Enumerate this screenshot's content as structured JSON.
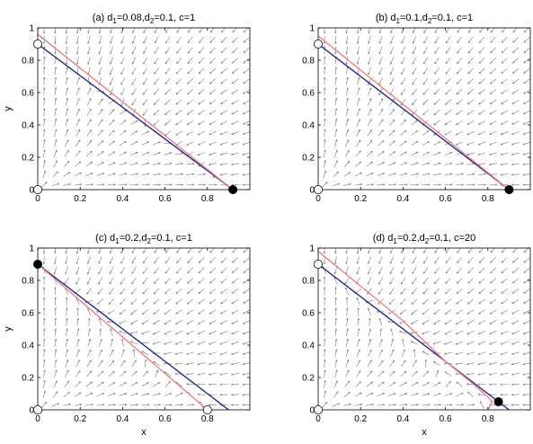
{
  "colors": {
    "nullcline_x": "#1f2a8c",
    "nullcline_y": "#f08080",
    "arrows": "#7a7a7a",
    "stable_point": "#000000",
    "unstable_point": "#ffffff"
  },
  "chart_data": [
    {
      "type": "line",
      "title_parts": [
        "(a) d",
        "1",
        "=0.08,d",
        "2",
        "=0.1, c=1"
      ],
      "xlabel": "",
      "ylabel": "y",
      "xlim": [
        0,
        1
      ],
      "ylim": [
        0,
        1
      ],
      "xticks": [
        "0",
        "0.2",
        "0.4",
        "0.6",
        "0.8"
      ],
      "yticks": [
        "0",
        "0.2",
        "0.4",
        "0.6",
        "0.8",
        "1"
      ],
      "show_xticks": true,
      "show_yticks": true,
      "series": [
        {
          "x": [
            0,
            0.92
          ],
          "y": [
            0.9,
            0
          ]
        },
        {
          "x": [
            0,
            0.92
          ],
          "y": [
            0.96,
            0
          ]
        }
      ],
      "points": [
        {
          "x": 0,
          "y": 0.9,
          "filled": false
        },
        {
          "x": 0,
          "y": 0,
          "filled": false
        },
        {
          "x": 0.92,
          "y": 0,
          "filled": true
        }
      ]
    },
    {
      "type": "line",
      "title_parts": [
        "(b) d",
        "1",
        "=0.1,d",
        "2",
        "=0.1, c=1"
      ],
      "xlabel": "",
      "ylabel": "",
      "xlim": [
        0,
        1
      ],
      "ylim": [
        0,
        1
      ],
      "xticks": [
        "0",
        "0.2",
        "0.4",
        "0.6",
        "0.8"
      ],
      "yticks": [
        "0",
        "0.2",
        "0.4",
        "0.6",
        "0.8",
        "1"
      ],
      "show_xticks": true,
      "show_yticks": true,
      "series": [
        {
          "x": [
            0,
            0.9
          ],
          "y": [
            0.9,
            0
          ]
        },
        {
          "x": [
            0,
            0.9
          ],
          "y": [
            0.95,
            0
          ]
        }
      ],
      "points": [
        {
          "x": 0,
          "y": 0.9,
          "filled": false
        },
        {
          "x": 0,
          "y": 0,
          "filled": false
        },
        {
          "x": 0.9,
          "y": 0,
          "filled": true
        }
      ]
    },
    {
      "type": "line",
      "title_parts": [
        "(c) d",
        "1",
        "=0.2,d",
        "2",
        "=0.1, c=1"
      ],
      "xlabel": "x",
      "ylabel": "y",
      "xlim": [
        0,
        1
      ],
      "ylim": [
        0,
        1
      ],
      "xticks": [
        "0",
        "0.2",
        "0.4",
        "0.6",
        "0.8"
      ],
      "yticks": [
        "0",
        "0.2",
        "0.4",
        "0.6",
        "0.8",
        "1"
      ],
      "show_xticks": true,
      "show_yticks": true,
      "series": [
        {
          "x": [
            0,
            0.9
          ],
          "y": [
            0.9,
            0
          ]
        },
        {
          "x": [
            0,
            0.8
          ],
          "y": [
            0.9,
            0
          ]
        }
      ],
      "points": [
        {
          "x": 0,
          "y": 0.9,
          "filled": true
        },
        {
          "x": 0,
          "y": 0,
          "filled": false
        },
        {
          "x": 0.8,
          "y": 0,
          "filled": false
        }
      ]
    },
    {
      "type": "line",
      "title_parts": [
        "(d) d",
        "1",
        "=0.2,d",
        "2",
        "=0.1, c=20"
      ],
      "xlabel": "x",
      "ylabel": "",
      "xlim": [
        0,
        1
      ],
      "ylim": [
        0,
        1
      ],
      "xticks": [
        "0",
        "0.2",
        "0.4",
        "0.6",
        "0.8"
      ],
      "yticks": [
        "0",
        "0.2",
        "0.4",
        "0.6",
        "0.8",
        "1"
      ],
      "show_xticks": true,
      "show_yticks": true,
      "series": [
        {
          "x": [
            0,
            0.9
          ],
          "y": [
            0.9,
            0
          ]
        },
        {
          "x": [
            0,
            0.4,
            0.6,
            0.74,
            0.8,
            0.82,
            0.8
          ],
          "y": [
            0.98,
            0.55,
            0.3,
            0.15,
            0.08,
            0.05,
            0
          ]
        }
      ],
      "points": [
        {
          "x": 0,
          "y": 0.9,
          "filled": false
        },
        {
          "x": 0,
          "y": 0,
          "filled": false
        },
        {
          "x": 0.85,
          "y": 0.05,
          "filled": true
        }
      ]
    }
  ]
}
